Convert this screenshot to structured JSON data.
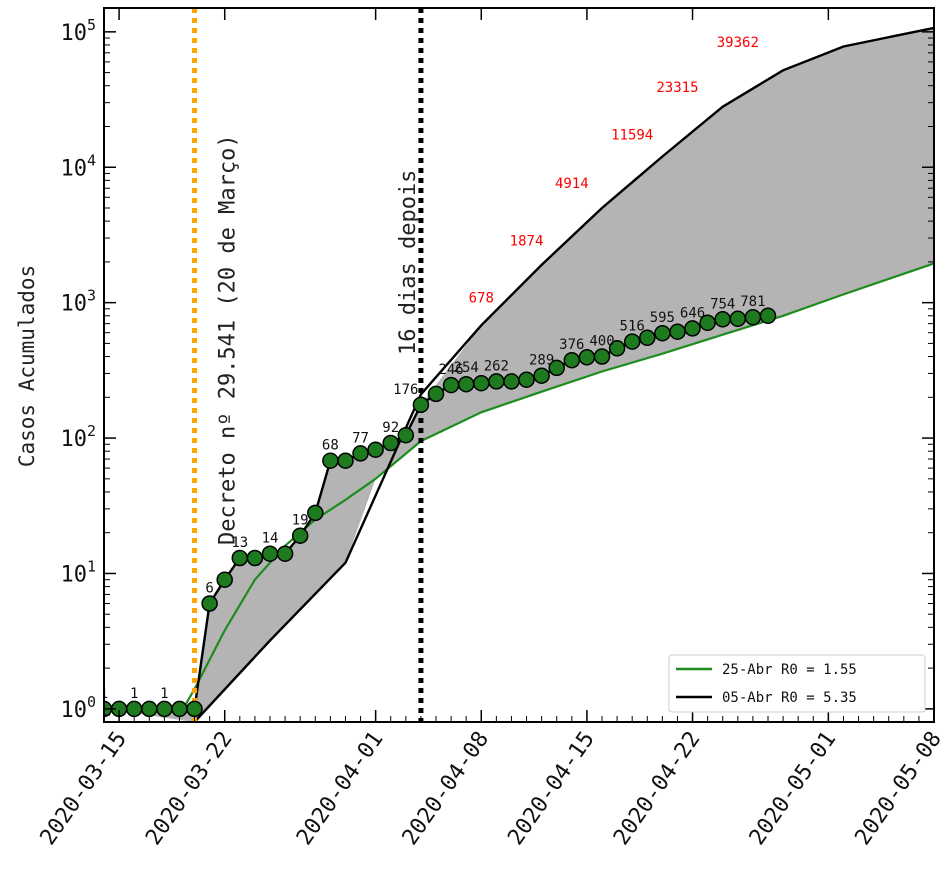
{
  "chart_data": {
    "type": "line",
    "title": "",
    "xlabel": "",
    "ylabel": "Casos Acumulados",
    "y_scale": "log",
    "ylim": [
      0.8,
      150000
    ],
    "xlim": [
      "2020-03-14",
      "2020-05-08"
    ],
    "x_ticks": [
      "2020-03-15",
      "2020-03-22",
      "2020-04-01",
      "2020-04-08",
      "2020-04-15",
      "2020-04-22",
      "2020-05-01",
      "2020-05-08"
    ],
    "y_ticks": [
      {
        "value": 1,
        "base": "10",
        "exp": "0"
      },
      {
        "value": 10,
        "base": "10",
        "exp": "1"
      },
      {
        "value": 100,
        "base": "10",
        "exp": "2"
      },
      {
        "value": 1000,
        "base": "10",
        "exp": "3"
      },
      {
        "value": 10000,
        "base": "10",
        "exp": "4"
      },
      {
        "value": 100000,
        "base": "10",
        "exp": "5"
      }
    ],
    "legend": {
      "placement": "bottom-right",
      "entries": [
        {
          "label": "25-Abr R0 = 1.55",
          "color": "#1e8c1e"
        },
        {
          "label": "05-Abr R0 = 5.35",
          "color": "#000000"
        }
      ]
    },
    "vlines": [
      {
        "x": "2020-03-20",
        "color": "#ffa500",
        "label": "Decreto nº 29.541 (20 de Março)"
      },
      {
        "x": "2020-04-04",
        "color": "#000000",
        "label": "16 dias depois"
      }
    ],
    "observed": {
      "color": "#1e7a1e",
      "x": [
        "2020-03-14",
        "2020-03-15",
        "2020-03-16",
        "2020-03-17",
        "2020-03-18",
        "2020-03-19",
        "2020-03-20",
        "2020-03-21",
        "2020-03-22",
        "2020-03-23",
        "2020-03-24",
        "2020-03-25",
        "2020-03-26",
        "2020-03-27",
        "2020-03-28",
        "2020-03-29",
        "2020-03-30",
        "2020-03-31",
        "2020-04-01",
        "2020-04-02",
        "2020-04-03",
        "2020-04-04",
        "2020-04-05",
        "2020-04-06",
        "2020-04-07",
        "2020-04-08",
        "2020-04-09",
        "2020-04-10",
        "2020-04-11",
        "2020-04-12",
        "2020-04-13",
        "2020-04-14",
        "2020-04-15",
        "2020-04-16",
        "2020-04-17",
        "2020-04-18",
        "2020-04-19",
        "2020-04-20",
        "2020-04-21",
        "2020-04-22",
        "2020-04-23",
        "2020-04-24",
        "2020-04-25",
        "2020-04-26",
        "2020-04-27"
      ],
      "y": [
        1,
        1,
        1,
        1,
        1,
        1,
        1,
        6,
        9,
        13,
        13,
        14,
        14,
        19,
        28,
        68,
        68,
        77,
        82,
        92,
        105,
        176,
        212,
        246,
        250,
        254,
        262,
        262,
        270,
        289,
        330,
        376,
        395,
        400,
        460,
        516,
        550,
        595,
        610,
        646,
        710,
        754,
        760,
        781,
        800
      ],
      "labels": [
        {
          "x": "2020-03-14",
          "y": 1,
          "text": "1"
        },
        {
          "x": "2020-03-16",
          "y": 1,
          "text": "1"
        },
        {
          "x": "2020-03-18",
          "y": 1,
          "text": "1"
        },
        {
          "x": "2020-03-21",
          "y": 6,
          "text": "6"
        },
        {
          "x": "2020-03-23",
          "y": 13,
          "text": "13"
        },
        {
          "x": "2020-03-25",
          "y": 14,
          "text": "14"
        },
        {
          "x": "2020-03-27",
          "y": 19,
          "text": "19"
        },
        {
          "x": "2020-03-29",
          "y": 68,
          "text": "68"
        },
        {
          "x": "2020-03-31",
          "y": 77,
          "text": "77"
        },
        {
          "x": "2020-04-02",
          "y": 92,
          "text": "92"
        },
        {
          "x": "2020-04-03",
          "y": 176,
          "text": "176"
        },
        {
          "x": "2020-04-06",
          "y": 246,
          "text": "246"
        },
        {
          "x": "2020-04-07",
          "y": 254,
          "text": "254"
        },
        {
          "x": "2020-04-09",
          "y": 262,
          "text": "262"
        },
        {
          "x": "2020-04-12",
          "y": 289,
          "text": "289"
        },
        {
          "x": "2020-04-14",
          "y": 376,
          "text": "376"
        },
        {
          "x": "2020-04-16",
          "y": 400,
          "text": "400"
        },
        {
          "x": "2020-04-18",
          "y": 516,
          "text": "516"
        },
        {
          "x": "2020-04-20",
          "y": 595,
          "text": "595"
        },
        {
          "x": "2020-04-22",
          "y": 646,
          "text": "646"
        },
        {
          "x": "2020-04-24",
          "y": 754,
          "text": "754"
        },
        {
          "x": "2020-04-26",
          "y": 781,
          "text": "781"
        }
      ]
    },
    "series": [
      {
        "name": "05-Abr R0 = 5.35",
        "color": "#000000",
        "x": [
          "2020-03-20",
          "2020-03-25",
          "2020-03-30",
          "2020-04-04",
          "2020-04-08",
          "2020-04-12",
          "2020-04-16",
          "2020-04-20",
          "2020-04-24",
          "2020-04-28",
          "2020-05-02",
          "2020-05-08"
        ],
        "y": [
          0.8,
          3.2,
          12,
          210,
          680,
          1900,
          5000,
          12000,
          28000,
          52000,
          78000,
          107000
        ]
      },
      {
        "name": "25-Abr R0 = 1.55",
        "color": "#1e8c1e",
        "x": [
          "2020-03-19",
          "2020-03-20",
          "2020-03-22",
          "2020-03-24",
          "2020-03-26",
          "2020-03-28",
          "2020-03-30",
          "2020-04-01",
          "2020-04-04",
          "2020-04-08",
          "2020-04-12",
          "2020-04-16",
          "2020-04-20",
          "2020-04-24",
          "2020-04-28",
          "2020-05-02",
          "2020-05-08"
        ],
        "y": [
          0.9,
          1.4,
          3.8,
          9,
          16,
          25,
          35,
          50,
          95,
          155,
          220,
          310,
          420,
          580,
          800,
          1150,
          1950
        ]
      }
    ],
    "forecast_labels": {
      "color": "#ff0000",
      "points": [
        {
          "x": "2020-04-08",
          "y": 1000,
          "text": "678"
        },
        {
          "x": "2020-04-11",
          "y": 2650,
          "text": "1874"
        },
        {
          "x": "2020-04-14",
          "y": 7000,
          "text": "4914"
        },
        {
          "x": "2020-04-18",
          "y": 16000,
          "text": "11594"
        },
        {
          "x": "2020-04-21",
          "y": 36000,
          "text": "23315"
        },
        {
          "x": "2020-04-25",
          "y": 77000,
          "text": "39362"
        }
      ]
    }
  }
}
